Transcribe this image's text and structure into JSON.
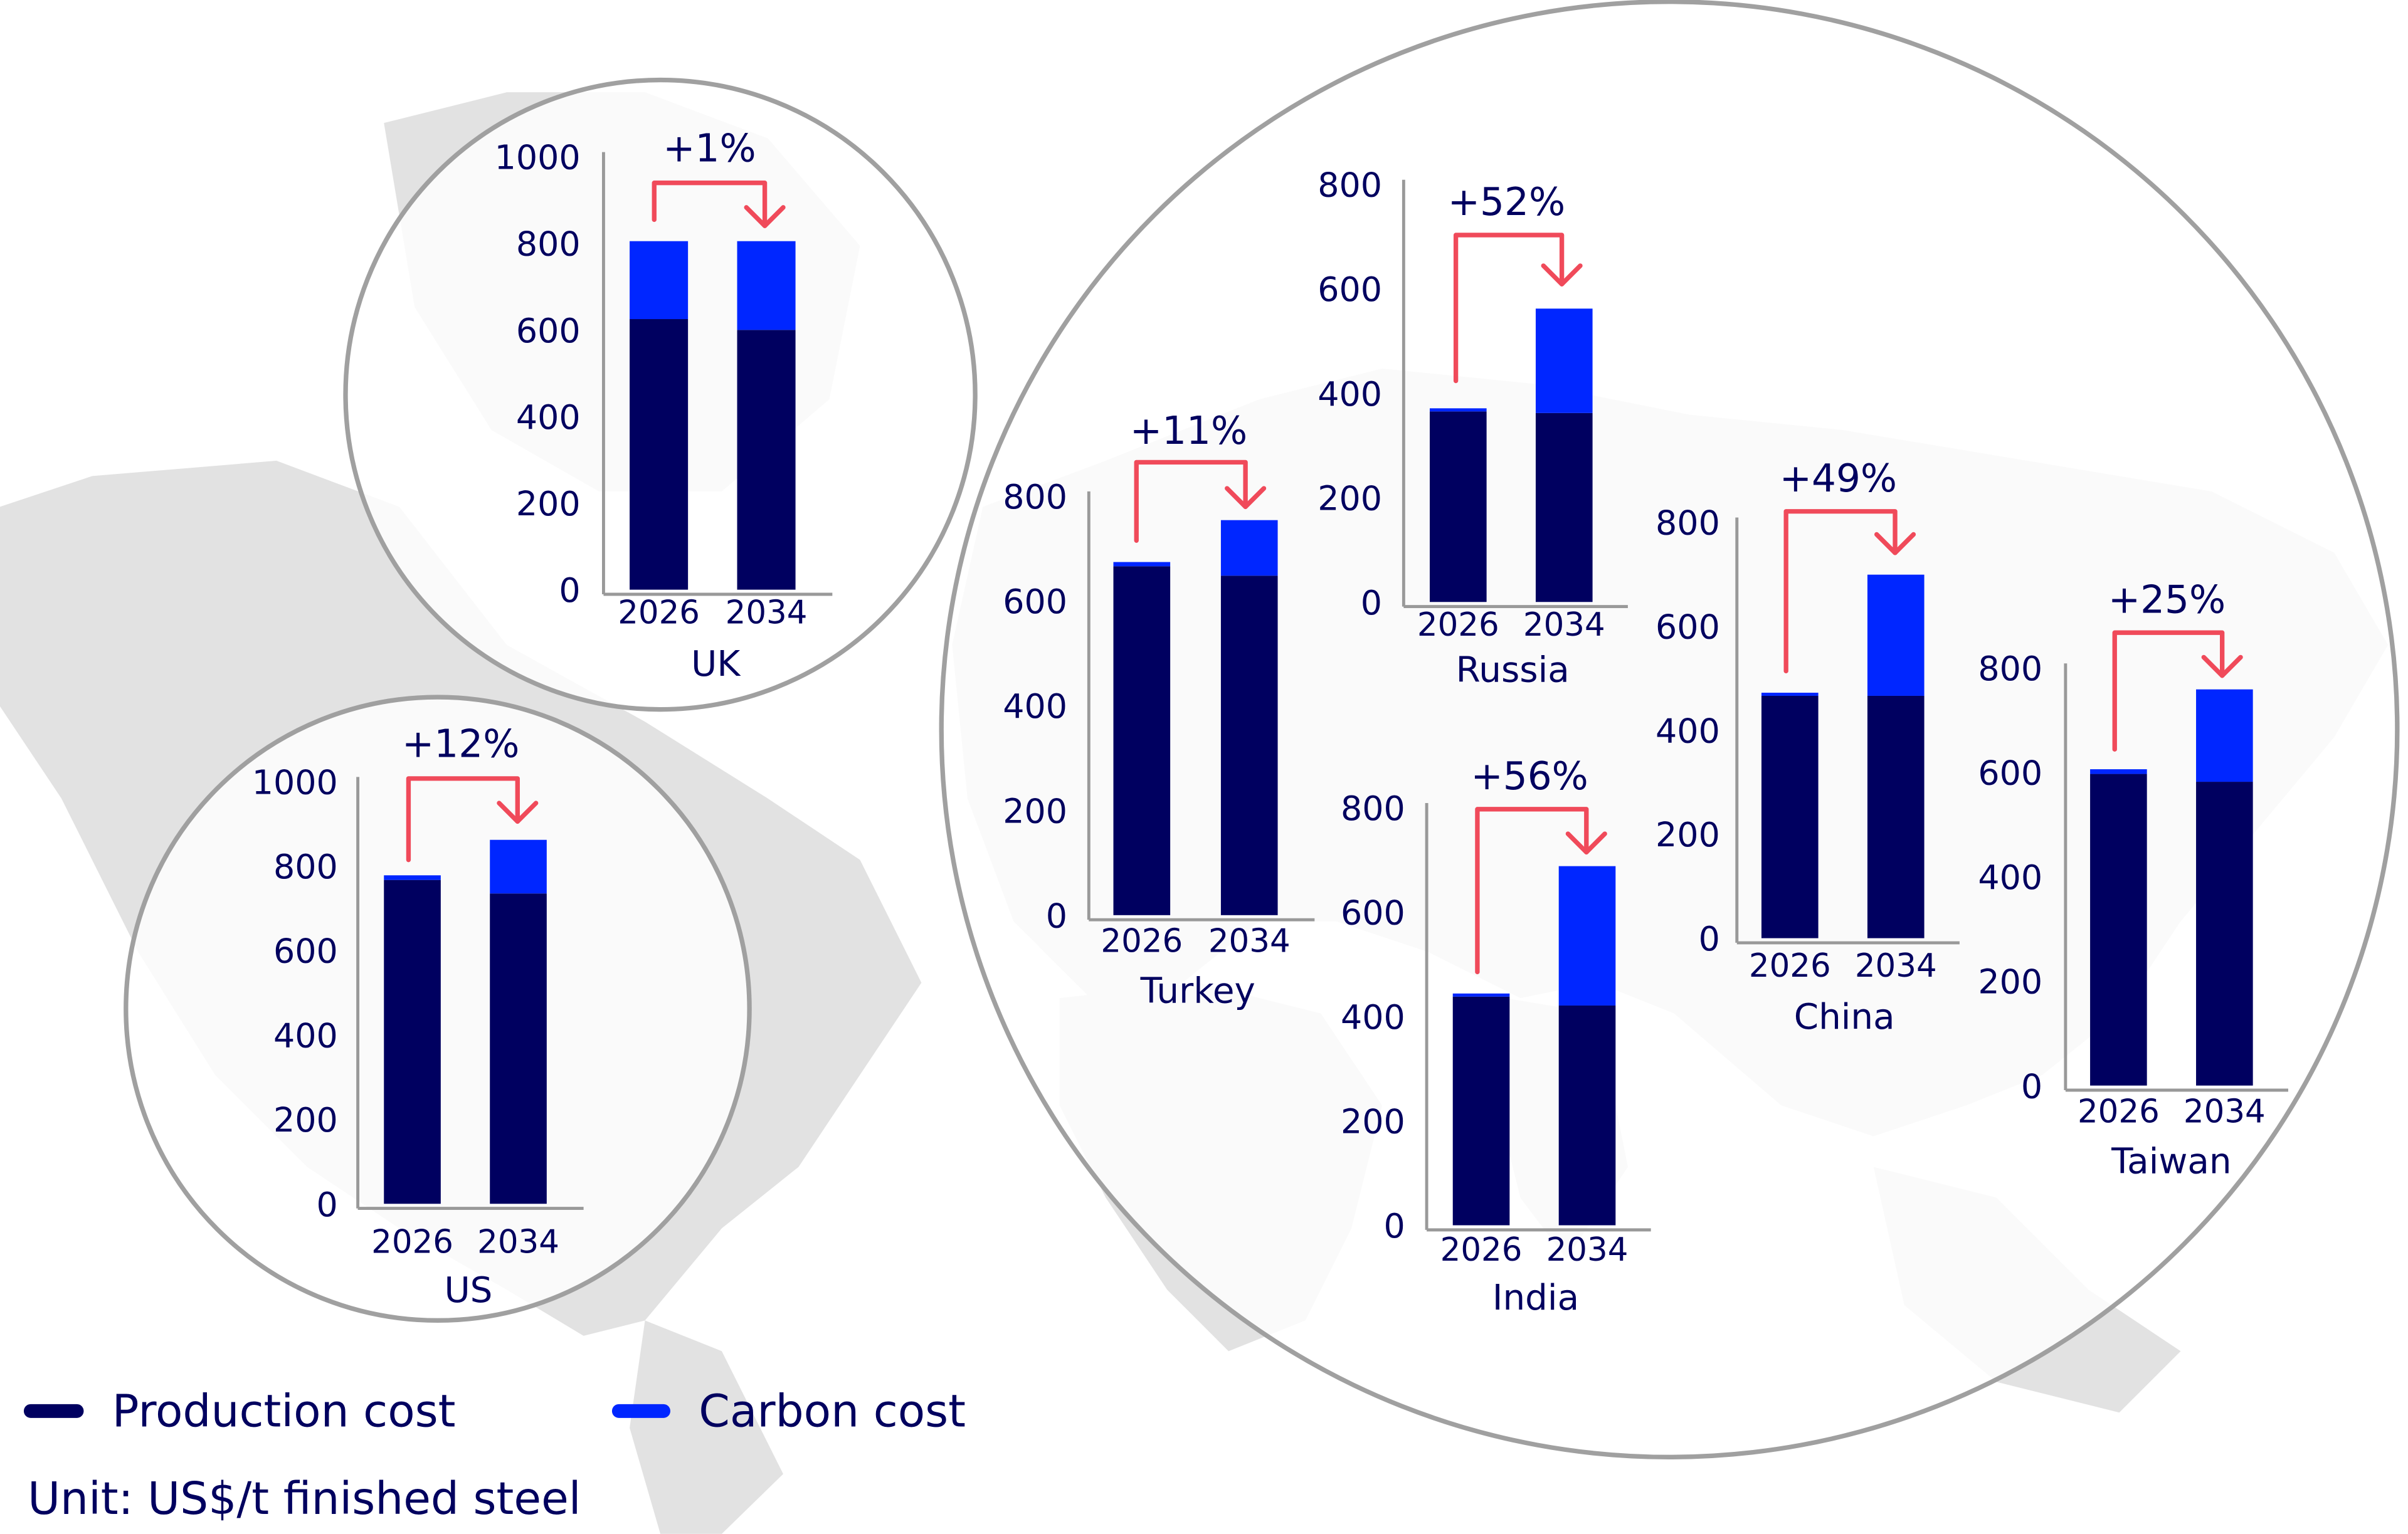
{
  "colors": {
    "production": "#000060",
    "carbon": "#0026ff",
    "arrow": "#f04a5a",
    "axis": "#999999",
    "map": "#e2e2e2",
    "circle": "#a0a0a0"
  },
  "legend": {
    "production_label": "Production cost",
    "carbon_label": "Carbon cost",
    "unit": "Unit: US$/t finished steel"
  },
  "chart_data": [
    {
      "type": "bar",
      "stacked": true,
      "title": "UK",
      "categories": [
        "2026",
        "2034"
      ],
      "yticks": [
        0,
        200,
        400,
        600,
        800,
        1000
      ],
      "ylim": [
        0,
        1000
      ],
      "change": "+1%",
      "series": [
        {
          "name": "Production cost",
          "values": [
            625,
            600
          ]
        },
        {
          "name": "Carbon cost",
          "values": [
            180,
            205
          ]
        }
      ]
    },
    {
      "type": "bar",
      "stacked": true,
      "title": "US",
      "categories": [
        "2026",
        "2034"
      ],
      "yticks": [
        0,
        200,
        400,
        600,
        800,
        1000
      ],
      "ylim": [
        0,
        1000
      ],
      "change": "+12%",
      "series": [
        {
          "name": "Production cost",
          "values": [
            767,
            735
          ]
        },
        {
          "name": "Carbon cost",
          "values": [
            11,
            127
          ]
        }
      ]
    },
    {
      "type": "bar",
      "stacked": true,
      "title": "Turkey",
      "categories": [
        "2026",
        "2034"
      ],
      "yticks": [
        0,
        200,
        400,
        600,
        800
      ],
      "ylim": [
        0,
        800
      ],
      "change": "+11%",
      "series": [
        {
          "name": "Production cost",
          "values": [
            666,
            648
          ]
        },
        {
          "name": "Carbon cost",
          "values": [
            8,
            106
          ]
        }
      ]
    },
    {
      "type": "bar",
      "stacked": true,
      "title": "Russia",
      "categories": [
        "2026",
        "2034"
      ],
      "yticks": [
        0,
        200,
        400,
        600,
        800
      ],
      "ylim": [
        0,
        800
      ],
      "change": "+52%",
      "series": [
        {
          "name": "Production cost",
          "values": [
            365,
            362
          ]
        },
        {
          "name": "Carbon cost",
          "values": [
            6,
            200
          ]
        }
      ]
    },
    {
      "type": "bar",
      "stacked": true,
      "title": "China",
      "categories": [
        "2026",
        "2034"
      ],
      "yticks": [
        0,
        200,
        400,
        600,
        800
      ],
      "ylim": [
        0,
        800
      ],
      "change": "+49%",
      "series": [
        {
          "name": "Production cost",
          "values": [
            466,
            466
          ]
        },
        {
          "name": "Carbon cost",
          "values": [
            6,
            233
          ]
        }
      ]
    },
    {
      "type": "bar",
      "stacked": true,
      "title": "India",
      "categories": [
        "2026",
        "2034"
      ],
      "yticks": [
        0,
        200,
        400,
        600,
        800
      ],
      "ylim": [
        0,
        800
      ],
      "change": "+56%",
      "series": [
        {
          "name": "Production cost",
          "values": [
            438,
            421
          ]
        },
        {
          "name": "Carbon cost",
          "values": [
            6,
            267
          ]
        }
      ]
    },
    {
      "type": "bar",
      "stacked": true,
      "title": "Taiwan",
      "categories": [
        "2026",
        "2034"
      ],
      "yticks": [
        0,
        200,
        400,
        600,
        800
      ],
      "ylim": [
        0,
        800
      ],
      "change": "+25%",
      "series": [
        {
          "name": "Production cost",
          "values": [
            597,
            582
          ]
        },
        {
          "name": "Carbon cost",
          "values": [
            9,
            177
          ]
        }
      ]
    }
  ]
}
